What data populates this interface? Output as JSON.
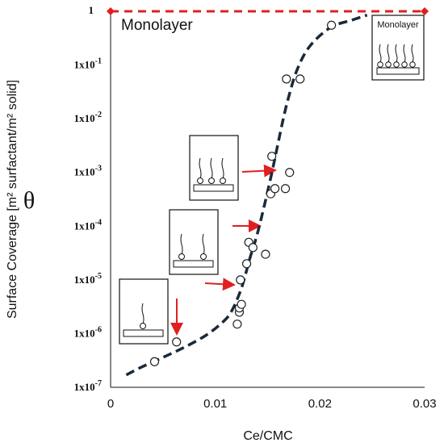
{
  "chart_data": {
    "type": "scatter",
    "xlabel": "Ce/CMC",
    "ylabel": "Surface Coverage [m² surfactant/m² solid]",
    "ylabel_symbol": "θ",
    "xlim": [
      0,
      0.03
    ],
    "ylim": [
      1e-07,
      1
    ],
    "y_scale": "log",
    "x_ticks": [
      0,
      0.01,
      0.02,
      0.03
    ],
    "x_tick_labels": [
      "0",
      "0.01",
      "0.02",
      "0.03"
    ],
    "y_ticks": [
      1e-07,
      1e-06,
      1e-05,
      0.0001,
      0.001,
      0.01,
      0.1,
      1
    ],
    "y_tick_labels": [
      {
        "base": "1x10",
        "exp": "-7"
      },
      {
        "base": "1x10",
        "exp": "-6"
      },
      {
        "base": "1x10",
        "exp": "-5"
      },
      {
        "base": "1x10",
        "exp": "-4"
      },
      {
        "base": "1x10",
        "exp": "-3"
      },
      {
        "base": "1x10",
        "exp": "-2"
      },
      {
        "base": "1x10",
        "exp": "-1"
      },
      {
        "base": "1",
        "exp": ""
      }
    ],
    "grid": false,
    "series": [
      {
        "kind": "points",
        "marker": "open-circle",
        "x": [
          0.0042,
          0.0063,
          0.0121,
          0.0123,
          0.0123,
          0.0125,
          0.0124,
          0.013,
          0.0132,
          0.0136,
          0.0148,
          0.0153,
          0.0154,
          0.0157,
          0.0167,
          0.0171,
          0.0168,
          0.0181,
          0.0211
        ],
        "y": [
          3e-07,
          7e-07,
          1.5e-06,
          2.5e-06,
          3e-06,
          3.5e-06,
          1e-05,
          2e-05,
          5e-05,
          4e-05,
          3e-05,
          0.0004,
          0.002,
          0.0005,
          0.0005,
          0.001,
          0.055,
          0.055,
          0.55
        ]
      },
      {
        "kind": "fit-curve",
        "style": "dashed",
        "color": "#1a2a3a",
        "x": [
          0.0015,
          0.003,
          0.005,
          0.007,
          0.009,
          0.0105,
          0.0115,
          0.0125,
          0.0133,
          0.014,
          0.0148,
          0.0155,
          0.016,
          0.0165,
          0.017,
          0.0178,
          0.019,
          0.021,
          0.023,
          0.0245
        ],
        "y": [
          1.7e-07,
          2.4e-07,
          3.6e-07,
          5.5e-07,
          9e-07,
          1.5e-06,
          2.5e-06,
          7e-06,
          2.5e-05,
          7e-05,
          0.0003,
          0.0012,
          0.0035,
          0.01,
          0.025,
          0.08,
          0.22,
          0.5,
          0.68,
          0.85
        ]
      },
      {
        "kind": "reference-line",
        "style": "dashed",
        "color": "#e02020",
        "y_value": 1
      }
    ],
    "annotations": [
      {
        "id": "monolayer-label",
        "text": "Monolayer"
      },
      {
        "id": "monolayer-inset",
        "text": "Monolayer",
        "molecules": 5
      },
      {
        "id": "inset-3",
        "molecules": 3,
        "arrow_to": [
          0.0158,
          0.001
        ]
      },
      {
        "id": "inset-2",
        "molecules": 2,
        "arrow_to": [
          0.0144,
          0.0001
        ]
      },
      {
        "id": "inset-1b",
        "molecules": 1,
        "arrow_to": [
          0.0125,
          1e-05
        ]
      },
      {
        "id": "inset-1a",
        "molecules": 1,
        "arrow_to": [
          0.0064,
          7e-07
        ]
      }
    ],
    "colors": {
      "axis": "#111111",
      "points": "#222222",
      "arrow": "#e02020",
      "fit": "#1a2a3a",
      "reference": "#e02020"
    }
  }
}
